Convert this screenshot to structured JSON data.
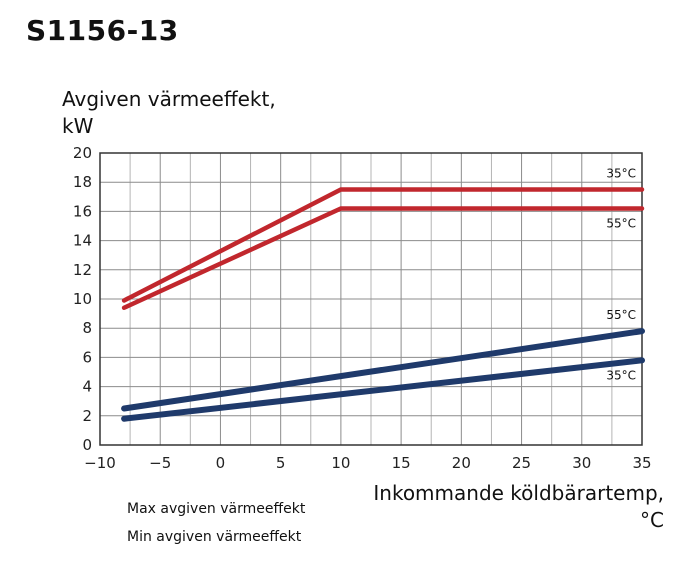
{
  "title": "S1156-13",
  "chart_data": {
    "type": "line",
    "ylabel_line1": "Avgiven värmeeffekt,",
    "ylabel_line2": "kW",
    "xlabel_line1": "Inkommande köldbärartemp,",
    "xlabel_line2": "°C",
    "xlim": [
      -10,
      35
    ],
    "ylim": [
      0,
      20
    ],
    "x_ticks": [
      -10,
      -5,
      0,
      5,
      10,
      15,
      20,
      25,
      30,
      35
    ],
    "x_tick_labels": [
      "−10",
      "−5",
      "0",
      "5",
      "10",
      "15",
      "20",
      "25",
      "30",
      "35"
    ],
    "y_ticks": [
      0,
      2,
      4,
      6,
      8,
      10,
      12,
      14,
      16,
      18,
      20
    ],
    "grid": true,
    "legend": [
      "Max avgiven värmeeffekt",
      "Min avgiven värmeeffekt"
    ],
    "series": [
      {
        "label": "35°C",
        "group": "max",
        "color": "#c1272d",
        "x": [
          -8,
          10,
          35
        ],
        "y": [
          9.9,
          17.5,
          17.5
        ]
      },
      {
        "label": "55°C",
        "group": "max",
        "color": "#c1272d",
        "x": [
          -8,
          10,
          35
        ],
        "y": [
          9.4,
          16.2,
          16.2
        ]
      },
      {
        "label": "55°C",
        "group": "min",
        "color": "#1f3a6b",
        "x": [
          -8,
          35
        ],
        "y": [
          2.5,
          7.8
        ]
      },
      {
        "label": "35°C",
        "group": "min",
        "color": "#1f3a6b",
        "x": [
          -8,
          35
        ],
        "y": [
          1.8,
          5.8
        ]
      }
    ]
  }
}
